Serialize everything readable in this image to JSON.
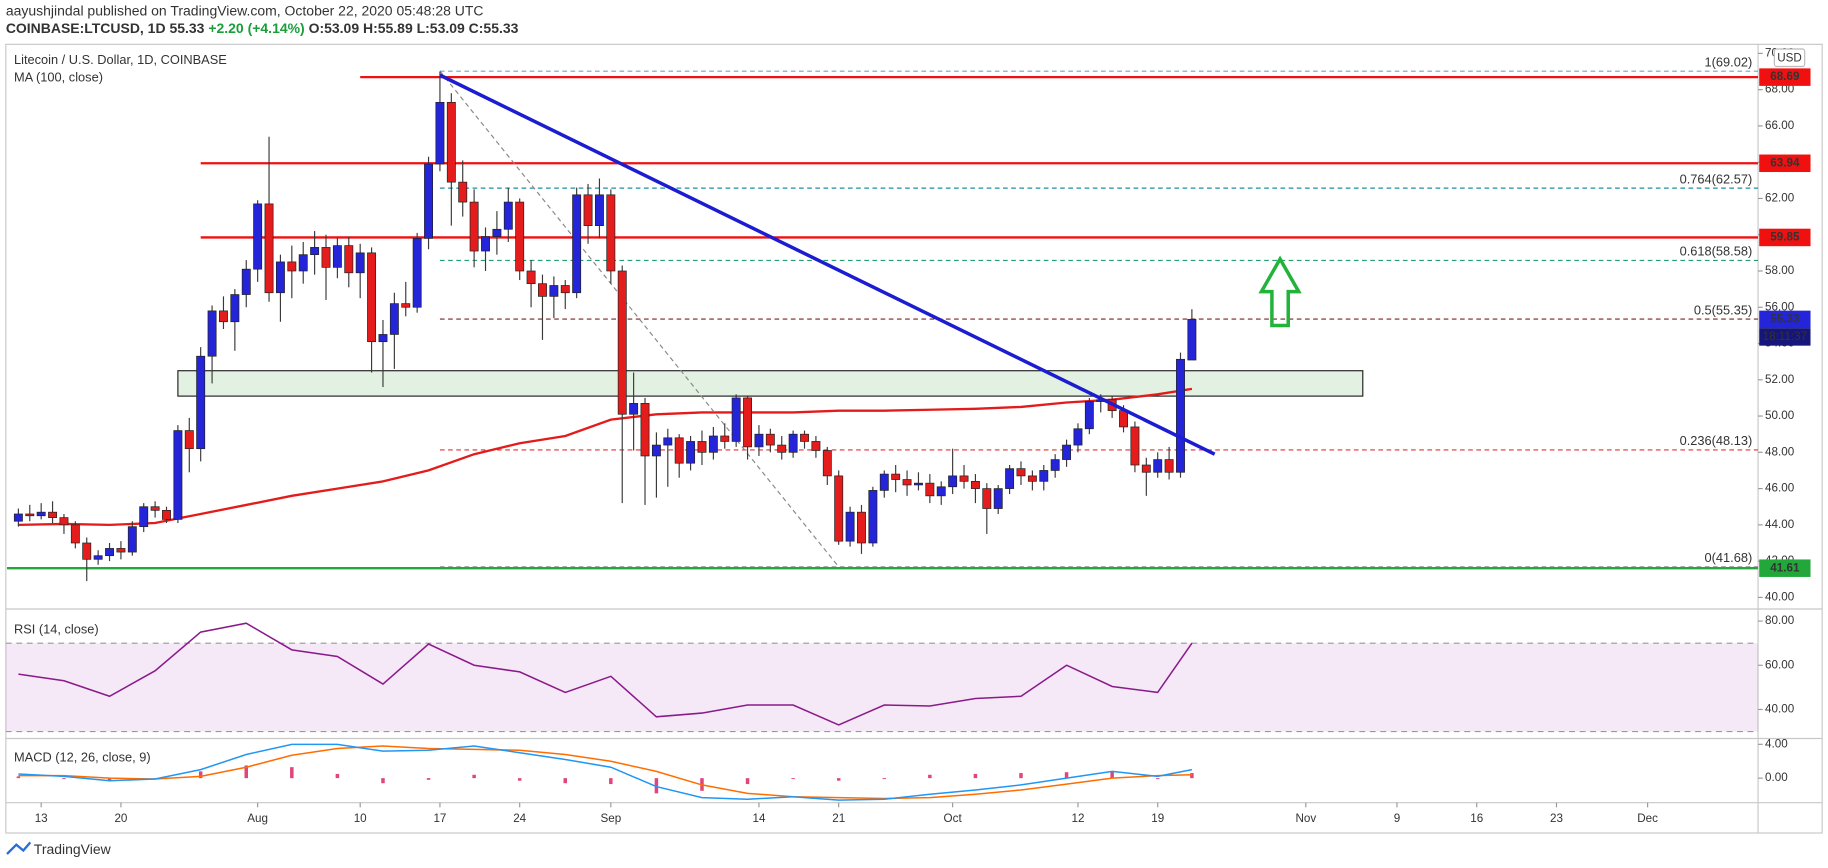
{
  "header": {
    "line1": "aayushjindal published on TradingView.com, October 22, 2020 05:48:28 UTC",
    "symbol": "COINBASE:LTCUSD, 1D",
    "change": "+2.20 (+4.14%)",
    "change_color": "#1a9e3a",
    "ohlc": "O:53.09 H:55.89 L:53.09 C:55.33"
  },
  "footer": "TradingView",
  "chart_data": {
    "type": "candlestick",
    "title": "Litecoin / U.S. Dollar, 1D, COINBASE",
    "currency": "USD",
    "countdown": "18:11:37",
    "x": [
      "2020-07-11",
      "2020-07-12",
      "2020-07-13",
      "2020-07-14",
      "2020-07-15",
      "2020-07-16",
      "2020-07-17",
      "2020-07-18",
      "2020-07-19",
      "2020-07-20",
      "2020-07-21",
      "2020-07-22",
      "2020-07-23",
      "2020-07-24",
      "2020-07-25",
      "2020-07-26",
      "2020-07-27",
      "2020-07-28",
      "2020-07-29",
      "2020-07-30",
      "2020-07-31",
      "2020-08-01",
      "2020-08-02",
      "2020-08-03",
      "2020-08-04",
      "2020-08-05",
      "2020-08-06",
      "2020-08-07",
      "2020-08-08",
      "2020-08-09",
      "2020-08-10",
      "2020-08-11",
      "2020-08-12",
      "2020-08-13",
      "2020-08-14",
      "2020-08-15",
      "2020-08-16",
      "2020-08-17",
      "2020-08-18",
      "2020-08-19",
      "2020-08-20",
      "2020-08-21",
      "2020-08-22",
      "2020-08-23",
      "2020-08-24",
      "2020-08-25",
      "2020-08-26",
      "2020-08-27",
      "2020-08-28",
      "2020-08-29",
      "2020-08-30",
      "2020-08-31",
      "2020-09-01",
      "2020-09-02",
      "2020-09-03",
      "2020-09-04",
      "2020-09-05",
      "2020-09-06",
      "2020-09-07",
      "2020-09-08",
      "2020-09-09",
      "2020-09-10",
      "2020-09-11",
      "2020-09-12",
      "2020-09-13",
      "2020-09-14",
      "2020-09-15",
      "2020-09-16",
      "2020-09-17",
      "2020-09-18",
      "2020-09-19",
      "2020-09-20",
      "2020-09-21",
      "2020-09-22",
      "2020-09-23",
      "2020-09-24",
      "2020-09-25",
      "2020-09-26",
      "2020-09-27",
      "2020-09-28",
      "2020-09-29",
      "2020-09-30",
      "2020-10-01",
      "2020-10-02",
      "2020-10-03",
      "2020-10-04",
      "2020-10-05",
      "2020-10-06",
      "2020-10-07",
      "2020-10-08",
      "2020-10-09",
      "2020-10-10",
      "2020-10-11",
      "2020-10-12",
      "2020-10-13",
      "2020-10-14",
      "2020-10-15",
      "2020-10-16",
      "2020-10-17",
      "2020-10-18",
      "2020-10-19",
      "2020-10-20",
      "2020-10-21",
      "2020-10-22"
    ],
    "open": [
      44.2,
      44.6,
      44.5,
      44.7,
      44.4,
      44.0,
      43.0,
      42.1,
      42.3,
      42.7,
      42.5,
      43.9,
      45.0,
      44.8,
      44.3,
      49.2,
      48.2,
      53.3,
      55.8,
      55.2,
      56.7,
      58.1,
      61.7,
      56.8,
      58.5,
      58.0,
      58.9,
      59.3,
      58.2,
      59.4,
      57.9,
      59.0,
      54.1,
      54.5,
      56.2,
      56.0,
      59.8,
      63.9,
      67.3,
      62.9,
      61.8,
      59.1,
      59.9,
      60.3,
      61.8,
      58.0,
      57.3,
      56.6,
      57.2,
      56.8,
      62.2,
      60.5,
      62.2,
      58.0,
      50.1,
      50.7,
      47.8,
      48.4,
      48.8,
      47.4,
      48.6,
      48.0,
      48.9,
      48.6,
      51.0,
      48.3,
      49.0,
      48.4,
      48.0,
      49.0,
      48.6,
      48.1,
      46.7,
      43.1,
      44.7,
      43.0,
      45.9,
      46.8,
      46.5,
      46.2,
      46.3,
      45.6,
      46.1,
      46.7,
      46.4,
      46.0,
      44.9,
      46.0,
      47.1,
      46.7,
      46.4,
      47.0,
      47.6,
      48.4,
      49.3,
      50.8,
      50.9,
      50.3,
      49.4,
      47.3,
      46.9,
      47.6,
      46.9,
      53.09
    ],
    "high": [
      44.9,
      45.1,
      45.2,
      45.3,
      44.6,
      44.2,
      43.3,
      42.6,
      43.0,
      43.1,
      44.2,
      45.2,
      45.3,
      45.0,
      49.5,
      49.9,
      53.8,
      56.1,
      56.6,
      57.0,
      58.6,
      61.9,
      65.4,
      58.9,
      59.4,
      59.6,
      60.2,
      60.0,
      59.8,
      59.9,
      59.5,
      59.3,
      55.3,
      56.8,
      57.4,
      60.1,
      64.3,
      69.0,
      67.8,
      64.1,
      62.5,
      60.4,
      61.3,
      62.6,
      62.0,
      58.6,
      57.8,
      57.7,
      57.5,
      62.6,
      62.8,
      63.1,
      62.5,
      58.3,
      52.4,
      51.0,
      49.1,
      49.3,
      49.0,
      48.9,
      49.2,
      49.4,
      49.6,
      51.2,
      51.1,
      49.5,
      49.3,
      48.9,
      49.2,
      49.2,
      48.9,
      48.3,
      47.0,
      45.0,
      45.1,
      46.1,
      47.0,
      47.3,
      47.0,
      46.9,
      46.8,
      46.4,
      48.2,
      47.3,
      46.8,
      46.3,
      46.2,
      47.3,
      47.5,
      47.0,
      47.3,
      47.9,
      48.7,
      49.6,
      51.0,
      51.2,
      51.1,
      50.6,
      49.7,
      47.7,
      48.0,
      48.3,
      53.5,
      55.89
    ],
    "low": [
      43.9,
      44.2,
      44.3,
      44.1,
      43.5,
      42.7,
      40.9,
      41.8,
      42.0,
      42.1,
      42.3,
      43.6,
      44.4,
      44.1,
      44.1,
      46.9,
      47.5,
      51.8,
      54.8,
      53.6,
      56.0,
      57.4,
      56.3,
      55.2,
      56.5,
      57.3,
      57.8,
      56.4,
      57.6,
      57.1,
      56.5,
      52.4,
      51.6,
      52.6,
      55.5,
      55.7,
      59.2,
      63.5,
      60.5,
      61.0,
      58.2,
      58.0,
      58.9,
      59.6,
      57.5,
      56.0,
      54.2,
      55.4,
      55.9,
      56.5,
      59.5,
      59.8,
      57.3,
      45.2,
      48.1,
      45.1,
      45.5,
      46.1,
      46.6,
      47.0,
      47.3,
      47.6,
      48.2,
      48.3,
      47.6,
      47.8,
      48.0,
      47.6,
      47.7,
      48.2,
      47.7,
      46.2,
      42.9,
      42.8,
      42.4,
      42.8,
      45.5,
      45.8,
      45.6,
      45.9,
      45.2,
      45.1,
      45.7,
      46.0,
      45.2,
      43.5,
      44.6,
      45.7,
      46.2,
      45.9,
      45.9,
      46.6,
      47.2,
      48.0,
      49.0,
      50.2,
      49.9,
      49.1,
      46.9,
      45.6,
      46.6,
      46.5,
      46.6,
      53.09
    ],
    "close": [
      44.6,
      44.5,
      44.7,
      44.4,
      44.0,
      43.0,
      42.1,
      42.3,
      42.7,
      42.5,
      43.9,
      45.0,
      44.8,
      44.3,
      49.2,
      48.2,
      53.3,
      55.8,
      55.2,
      56.7,
      58.1,
      61.7,
      56.8,
      58.5,
      58.0,
      58.9,
      59.3,
      58.2,
      59.4,
      57.9,
      59.0,
      54.1,
      54.5,
      56.2,
      56.0,
      59.8,
      63.9,
      67.3,
      62.9,
      61.8,
      59.1,
      59.9,
      60.3,
      61.8,
      58.0,
      57.3,
      56.6,
      57.2,
      56.8,
      62.2,
      60.5,
      62.2,
      58.0,
      50.1,
      50.7,
      47.8,
      48.4,
      48.8,
      47.4,
      48.6,
      48.0,
      48.9,
      48.6,
      51.0,
      48.3,
      49.0,
      48.4,
      48.0,
      49.0,
      48.6,
      48.1,
      46.7,
      43.1,
      44.7,
      43.0,
      45.9,
      46.8,
      46.5,
      46.2,
      46.3,
      45.6,
      46.1,
      46.7,
      46.4,
      46.0,
      44.9,
      46.0,
      47.1,
      46.7,
      46.4,
      47.0,
      47.6,
      48.4,
      49.3,
      50.8,
      50.9,
      50.3,
      49.4,
      47.3,
      46.9,
      47.6,
      46.9,
      53.13,
      55.33
    ],
    "up_color": "#2424d8",
    "down_color": "#e41c1c",
    "wick_color": "#3a3a3a",
    "xlim": [
      "2020-07-10",
      "2020-12-11"
    ],
    "xticks": [
      {
        "value": "2020-07-13",
        "label": "13"
      },
      {
        "value": "2020-07-20",
        "label": "20"
      },
      {
        "value": "2020-08-01",
        "label": "Aug"
      },
      {
        "value": "2020-08-10",
        "label": "10"
      },
      {
        "value": "2020-08-17",
        "label": "17"
      },
      {
        "value": "2020-08-24",
        "label": "24"
      },
      {
        "value": "2020-09-01",
        "label": "Sep"
      },
      {
        "value": "2020-09-14",
        "label": "14"
      },
      {
        "value": "2020-09-21",
        "label": "21"
      },
      {
        "value": "2020-10-01",
        "label": "Oct"
      },
      {
        "value": "2020-10-12",
        "label": "12"
      },
      {
        "value": "2020-10-19",
        "label": "19"
      },
      {
        "value": "2020-11-01",
        "label": "Nov"
      },
      {
        "value": "2020-11-09",
        "label": "9"
      },
      {
        "value": "2020-11-16",
        "label": "16"
      },
      {
        "value": "2020-11-23",
        "label": "23"
      },
      {
        "value": "2020-12-01",
        "label": "Dec"
      }
    ],
    "ylim": [
      39.36,
      70.37
    ],
    "yticks": [
      {
        "value": 40,
        "label": "40.00"
      },
      {
        "value": 42,
        "label": "42.00"
      },
      {
        "value": 44,
        "label": "44.00"
      },
      {
        "value": 46,
        "label": "46.00"
      },
      {
        "value": 48,
        "label": "48.00"
      },
      {
        "value": 50,
        "label": "50.00"
      },
      {
        "value": 52,
        "label": "52.00"
      },
      {
        "value": 54,
        "label": "54.00"
      },
      {
        "value": 56,
        "label": "56.00"
      },
      {
        "value": 58,
        "label": "58.00"
      },
      {
        "value": 60,
        "label": "60.00"
      },
      {
        "value": 62,
        "label": "62.00"
      },
      {
        "value": 64,
        "label": "64.00"
      },
      {
        "value": 66,
        "label": "66.00"
      },
      {
        "value": 68,
        "label": "68.00"
      },
      {
        "value": 70,
        "label": "70.00"
      }
    ],
    "x_sampled": [
      "2020-07-11",
      "2020-07-15",
      "2020-07-19",
      "2020-07-23",
      "2020-07-27",
      "2020-07-31",
      "2020-08-04",
      "2020-08-08",
      "2020-08-12",
      "2020-08-16",
      "2020-08-20",
      "2020-08-24",
      "2020-08-28",
      "2020-09-01",
      "2020-09-05",
      "2020-09-09",
      "2020-09-13",
      "2020-09-17",
      "2020-09-21",
      "2020-09-25",
      "2020-09-29",
      "2020-10-03",
      "2020-10-07",
      "2020-10-11",
      "2020-10-15",
      "2020-10-19",
      "2020-10-22"
    ],
    "ma": {
      "name": "MA (100, close)",
      "color": "#e31b1b",
      "values": [
        44.0,
        44.05,
        44.0,
        44.1,
        44.6,
        45.1,
        45.6,
        46.0,
        46.4,
        47.0,
        47.9,
        48.5,
        48.9,
        49.8,
        50.1,
        50.2,
        50.2,
        50.2,
        50.3,
        50.3,
        50.35,
        50.4,
        50.5,
        50.75,
        50.9,
        51.2,
        51.5
      ]
    },
    "levels": [
      {
        "value": 68.69,
        "start": "2020-08-10",
        "color": "#f01010"
      },
      {
        "value": 63.94,
        "start": "2020-07-27",
        "color": "#f01010"
      },
      {
        "value": 59.85,
        "start": "2020-07-27",
        "color": "#f01010"
      },
      {
        "value": 41.61,
        "start": "2020-07-10",
        "color": "#22a83a"
      }
    ],
    "fib": {
      "start": "2020-08-17",
      "levels": [
        {
          "value": 69.02,
          "label": "1(69.02)",
          "color": "#6aa6c8"
        },
        {
          "value": 62.57,
          "label": "0.764(62.57)",
          "color": "#1f8fa3"
        },
        {
          "value": 58.58,
          "label": "0.618(58.58)",
          "color": "#23a070"
        },
        {
          "value": 55.35,
          "label": "0.5(55.35)",
          "color": "#7a2020"
        },
        {
          "value": 48.13,
          "label": "0.236(48.13)",
          "color": "#e03030"
        },
        {
          "value": 41.68,
          "label": "0(41.68)",
          "color": "#777777"
        }
      ]
    },
    "fib_diagonal": {
      "x": [
        "2020-08-17",
        "2020-09-21"
      ],
      "values": [
        69.02,
        41.68
      ],
      "color": "#888888"
    },
    "trendline": {
      "x": [
        "2020-08-17",
        "2020-10-24"
      ],
      "values": [
        68.8,
        47.9
      ],
      "color": "#1c1cd0"
    },
    "zone": {
      "x": [
        "2020-07-25",
        "2020-11-06"
      ],
      "values": [
        51.1,
        52.5
      ],
      "color": "#cfe8cf"
    },
    "rsi": {
      "name": "RSI (14, close)",
      "color": "#8a1a8a",
      "values": [
        56,
        53,
        46,
        57.5,
        75,
        79,
        67,
        64,
        51.5,
        69.6,
        60,
        57,
        47.7,
        55,
        36.7,
        38.4,
        42,
        42,
        33,
        42,
        41.6,
        45,
        46,
        60,
        50.4,
        47.7,
        70
      ],
      "ylim": [
        27.4,
        84.4
      ],
      "yticks": [
        {
          "value": 40,
          "label": "40.00"
        },
        {
          "value": 60,
          "label": "60.00"
        },
        {
          "value": 80,
          "label": "80.00"
        }
      ],
      "band": [
        30,
        70
      ],
      "band_color": "#9c27b0"
    },
    "macd": {
      "name": "MACD (12, 26, close, 9)",
      "ylim": [
        -2.9,
        4.55
      ],
      "yticks": [
        {
          "value": 4,
          "label": "4.00"
        },
        {
          "value": 0,
          "label": "0.00"
        }
      ],
      "macd": {
        "color": "#2196f3",
        "values": [
          0.5,
          0.2,
          -0.3,
          -0.1,
          1.0,
          2.8,
          4.0,
          4.0,
          3.2,
          3.3,
          3.8,
          3.0,
          2.2,
          1.3,
          -1.0,
          -2.3,
          -2.5,
          -2.2,
          -2.6,
          -2.5,
          -1.9,
          -1.4,
          -0.8,
          0.0,
          0.8,
          0.2,
          1.0
        ]
      },
      "signal": {
        "color": "#ff6d00",
        "values": [
          0.3,
          0.3,
          0.0,
          -0.1,
          0.2,
          1.3,
          2.7,
          3.5,
          3.8,
          3.5,
          3.4,
          3.3,
          2.8,
          2.0,
          0.8,
          -0.8,
          -1.8,
          -2.2,
          -2.3,
          -2.4,
          -2.3,
          -1.9,
          -1.4,
          -0.7,
          0.0,
          0.3,
          0.4
        ]
      },
      "histogram": {
        "color": "#e0457b",
        "values": [
          0.2,
          -0.1,
          -0.3,
          0.0,
          0.8,
          1.5,
          1.3,
          0.5,
          -0.6,
          -0.2,
          0.4,
          -0.3,
          -0.6,
          -0.7,
          -1.8,
          -1.5,
          -0.7,
          0.0,
          -0.3,
          -0.1,
          0.4,
          0.5,
          0.6,
          0.7,
          0.8,
          -0.1,
          0.6
        ]
      }
    }
  }
}
